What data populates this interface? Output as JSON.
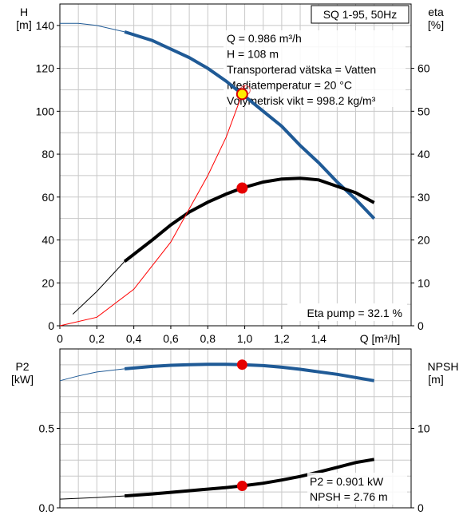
{
  "chart_data": [
    {
      "type": "line",
      "title": "SQ 1-95, 50Hz",
      "xlabel": "Q [m³/h]",
      "ylabel_left": [
        "H",
        "[m]"
      ],
      "ylabel_right": [
        "eta",
        "[%]"
      ],
      "xlim": [
        0,
        1.9
      ],
      "ylim_left": [
        0,
        150
      ],
      "ylim_right": [
        0,
        75
      ],
      "x_ticks": [
        "0",
        "0,2",
        "0,4",
        "0,6",
        "0,8",
        "1,0",
        "1,2",
        "1,4"
      ],
      "y_ticks_left": [
        "0",
        "20",
        "40",
        "60",
        "80",
        "100",
        "120",
        "140"
      ],
      "y_ticks_right": [
        "0",
        "10",
        "20",
        "30",
        "40",
        "50",
        "60"
      ],
      "grid": true,
      "annotations": [
        "Q = 0.986 m³/h",
        "H = 108 m",
        "Transporterad vätska = Vatten",
        "Mediatemperatur = 20 °C",
        "Volymetrisk vikt = 998.2 kg/m³"
      ],
      "eta_label": "Eta pump = 32.1 %",
      "series": [
        {
          "axis": "left",
          "color": "#1f5a96",
          "x": [
            0.0,
            0.1,
            0.2,
            0.35,
            0.5,
            0.6,
            0.7,
            0.8,
            0.9,
            0.986,
            1.1,
            1.2,
            1.3,
            1.4,
            1.5,
            1.6,
            1.7
          ],
          "values": [
            141,
            141,
            140,
            137,
            133,
            129,
            125,
            120,
            114,
            108,
            100,
            93,
            84,
            76,
            67,
            59,
            50
          ]
        },
        {
          "axis": "right",
          "color": "#000000",
          "x": [
            0.07,
            0.2,
            0.35,
            0.5,
            0.6,
            0.7,
            0.8,
            0.9,
            0.986,
            1.1,
            1.2,
            1.3,
            1.4,
            1.5,
            1.6,
            1.7
          ],
          "values": [
            2.7,
            8,
            15,
            20,
            23.5,
            26.5,
            28.8,
            30.7,
            32.1,
            33.5,
            34.2,
            34.4,
            34,
            32.5,
            31,
            28.7
          ]
        },
        {
          "axis": "left",
          "color": "#ff0000",
          "x": [
            0.0,
            0.2,
            0.4,
            0.6,
            0.8,
            0.9,
            0.986,
            1.0
          ],
          "values": [
            0,
            4,
            17,
            39,
            70,
            88,
            108,
            112
          ]
        }
      ],
      "duty_point": {
        "x": 0.986,
        "y": 108
      },
      "eta_point": {
        "x": 0.986,
        "y": 32.1
      }
    },
    {
      "type": "line",
      "ylabel_left": [
        "P2",
        "[kW]"
      ],
      "ylabel_right": [
        "NPSH",
        "[m]"
      ],
      "xlim": [
        0,
        1.9
      ],
      "ylim_left": [
        0,
        1.0
      ],
      "ylim_right": [
        0,
        20
      ],
      "y_ticks_left": [
        "0.0",
        "0.5"
      ],
      "y_ticks_right": [
        "0",
        "10"
      ],
      "annotations": [
        "P2 = 0.901 kW",
        "NPSH = 2.76 m"
      ],
      "series": [
        {
          "axis": "left",
          "color": "#1f5a96",
          "x": [
            0.0,
            0.1,
            0.2,
            0.35,
            0.5,
            0.6,
            0.7,
            0.8,
            0.9,
            0.986,
            1.1,
            1.2,
            1.3,
            1.4,
            1.5,
            1.6,
            1.7
          ],
          "values": [
            0.8,
            0.83,
            0.855,
            0.875,
            0.89,
            0.897,
            0.901,
            0.903,
            0.903,
            0.901,
            0.895,
            0.885,
            0.872,
            0.856,
            0.84,
            0.82,
            0.8
          ]
        },
        {
          "axis": "right",
          "color": "#000000",
          "x": [
            0.0,
            0.2,
            0.35,
            0.5,
            0.7,
            0.9,
            0.986,
            1.1,
            1.2,
            1.3,
            1.4,
            1.5,
            1.6,
            1.7
          ],
          "values": [
            1.1,
            1.3,
            1.5,
            1.75,
            2.15,
            2.55,
            2.76,
            3.1,
            3.5,
            3.95,
            4.5,
            5.1,
            5.7,
            6.1
          ]
        }
      ],
      "p2_point": {
        "x": 0.986,
        "y": 0.901
      },
      "npsh_point": {
        "x": 0.986,
        "y": 2.76
      }
    }
  ]
}
